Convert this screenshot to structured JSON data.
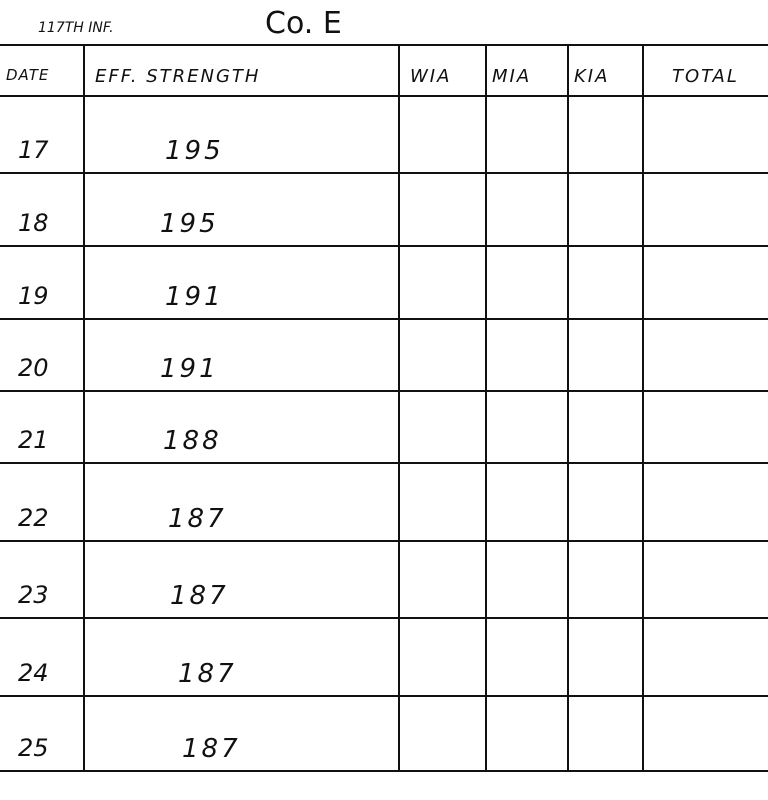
{
  "title": {
    "unit": "117TH INF.",
    "company": "Co. E"
  },
  "columns": [
    "DATE",
    "EFF. STRENGTH",
    "WIA",
    "MIA",
    "KIA",
    "TOTAL"
  ],
  "rows": [
    {
      "date": "17",
      "strength": "195"
    },
    {
      "date": "18",
      "strength": "195"
    },
    {
      "date": "19",
      "strength": "191"
    },
    {
      "date": "20",
      "strength": "191"
    },
    {
      "date": "21",
      "strength": "188"
    },
    {
      "date": "22",
      "strength": "187"
    },
    {
      "date": "23",
      "strength": "187"
    },
    {
      "date": "24",
      "strength": "187"
    },
    {
      "date": "25",
      "strength": "187"
    }
  ]
}
